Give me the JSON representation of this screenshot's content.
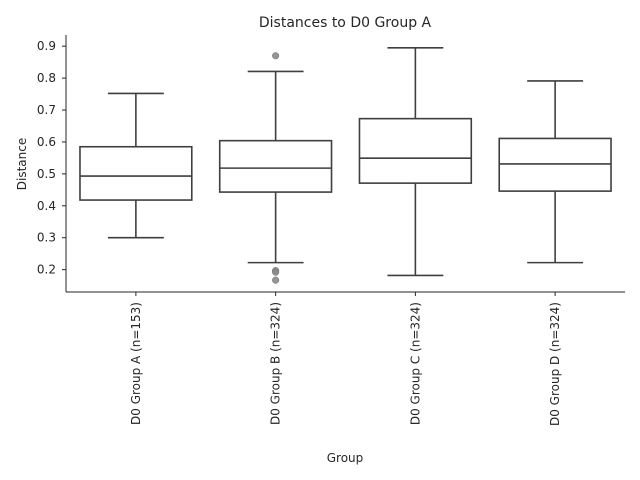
{
  "chart_data": {
    "type": "box",
    "title": "Distances to D0 Group A",
    "xlabel": "Group",
    "ylabel": "Distance",
    "ylim": [
      0.13,
      0.935
    ],
    "yticks": [
      0.2,
      0.3,
      0.4,
      0.5,
      0.6,
      0.7,
      0.8,
      0.9
    ],
    "grid": false,
    "categories": [
      "D0 Group A (n=153)",
      "D0 Group B (n=324)",
      "D0 Group C (n=324)",
      "D0 Group D (n=324)"
    ],
    "boxes": [
      {
        "label": "D0 Group A (n=153)",
        "whisker_low": 0.3,
        "q1": 0.418,
        "median": 0.493,
        "q3": 0.585,
        "whisker_high": 0.752,
        "outliers": []
      },
      {
        "label": "D0 Group B (n=324)",
        "whisker_low": 0.222,
        "q1": 0.443,
        "median": 0.518,
        "q3": 0.604,
        "whisker_high": 0.821,
        "outliers": [
          0.87,
          0.197,
          0.192,
          0.167
        ]
      },
      {
        "label": "D0 Group C (n=324)",
        "whisker_low": 0.182,
        "q1": 0.471,
        "median": 0.549,
        "q3": 0.673,
        "whisker_high": 0.895,
        "outliers": []
      },
      {
        "label": "D0 Group D (n=324)",
        "whisker_low": 0.222,
        "q1": 0.446,
        "median": 0.531,
        "q3": 0.611,
        "whisker_high": 0.791,
        "outliers": []
      }
    ],
    "colors": {
      "box_edge": "#3f3f3f",
      "box_fill": "#ffffff",
      "outlier": "#8a8a8a",
      "axis": "#262626"
    }
  }
}
